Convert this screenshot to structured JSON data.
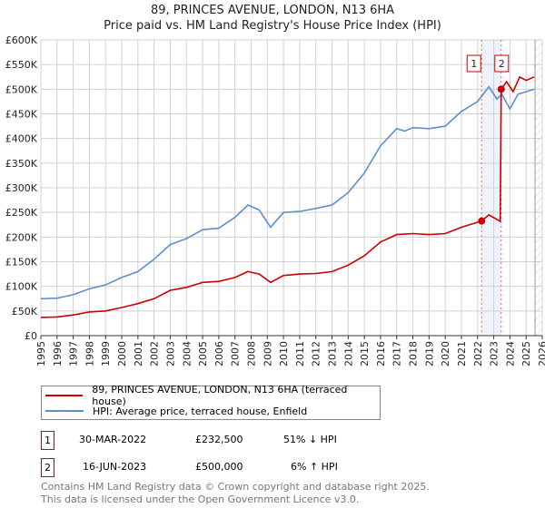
{
  "title": "89, PRINCES AVENUE, LONDON, N13 6HA",
  "subtitle": "Price paid vs. HM Land Registry's House Price Index (HPI)",
  "chart_data": {
    "type": "line",
    "title": "89, PRINCES AVENUE, LONDON, N13 6HA — Price paid vs. HM Land Registry's House Price Index (HPI)",
    "xlim": [
      1995,
      2026
    ],
    "ylim": [
      0,
      600000
    ],
    "xticks": [
      "1995",
      "1996",
      "1997",
      "1998",
      "1999",
      "2000",
      "2001",
      "2002",
      "2003",
      "2004",
      "2005",
      "2006",
      "2007",
      "2008",
      "2009",
      "2010",
      "2011",
      "2012",
      "2013",
      "2014",
      "2015",
      "2016",
      "2017",
      "2018",
      "2019",
      "2020",
      "2021",
      "2022",
      "2023",
      "2024",
      "2025",
      "2026"
    ],
    "yticks": [
      "£0",
      "£50K",
      "£100K",
      "£150K",
      "£200K",
      "£250K",
      "£300K",
      "£350K",
      "£400K",
      "£450K",
      "£500K",
      "£550K",
      "£600K"
    ],
    "grid": true,
    "series": [
      {
        "name": "89, PRINCES AVENUE, LONDON, N13 6HA (terraced house)",
        "color": "#cc0000",
        "x": [
          1995,
          1996,
          1997,
          1998,
          1999,
          2000,
          2001,
          2002,
          2003,
          2004,
          2005,
          2006,
          2007,
          2007.8,
          2008.5,
          2009.2,
          2010,
          2011,
          2012,
          2013,
          2014,
          2015,
          2016,
          2017,
          2018,
          2019,
          2020,
          2021,
          2022.25,
          2022.7,
          2023.4,
          2023.46,
          2023.8,
          2024.2,
          2024.6,
          2025,
          2025.5
        ],
        "y": [
          37000,
          38000,
          42000,
          48000,
          50000,
          57000,
          65000,
          75000,
          92000,
          98000,
          108000,
          110000,
          118000,
          130000,
          125000,
          108000,
          122000,
          125000,
          126000,
          130000,
          143000,
          162000,
          190000,
          205000,
          207000,
          205000,
          207000,
          220000,
          232500,
          245000,
          232000,
          500000,
          515000,
          495000,
          525000,
          518000,
          525000
        ]
      },
      {
        "name": "HPI: Average price, terraced house, Enfield",
        "color": "#5b8fd0",
        "x": [
          1995,
          1996,
          1997,
          1998,
          1999,
          2000,
          2001,
          2002,
          2003,
          2004,
          2005,
          2006,
          2007,
          2007.8,
          2008.5,
          2009.2,
          2010,
          2011,
          2012,
          2013,
          2014,
          2015,
          2016,
          2017,
          2017.5,
          2018,
          2019,
          2020,
          2021,
          2022,
          2022.7,
          2023.2,
          2023.5,
          2024,
          2024.5,
          2025,
          2025.5
        ],
        "y": [
          75000,
          76000,
          83000,
          95000,
          103000,
          118000,
          130000,
          155000,
          185000,
          197000,
          215000,
          218000,
          240000,
          265000,
          255000,
          220000,
          250000,
          252000,
          258000,
          265000,
          290000,
          330000,
          385000,
          420000,
          415000,
          422000,
          420000,
          425000,
          455000,
          475000,
          505000,
          480000,
          490000,
          460000,
          490000,
          495000,
          500000
        ]
      }
    ],
    "sales": [
      {
        "label": "1",
        "x": 2022.25,
        "y": 232500
      },
      {
        "label": "2",
        "x": 2023.46,
        "y": 500000
      }
    ],
    "legend": "bottom"
  },
  "legend": {
    "items": [
      "89, PRINCES AVENUE, LONDON, N13 6HA (terraced house)",
      "HPI: Average price, terraced house, Enfield"
    ]
  },
  "table": [
    {
      "num": "1",
      "date": "30-MAR-2022",
      "price": "£232,500",
      "hpi": "51% ↓ HPI"
    },
    {
      "num": "2",
      "date": "16-JUN-2023",
      "price": "£500,000",
      "hpi": "6% ↑ HPI"
    }
  ],
  "footer": [
    "Contains HM Land Registry data © Crown copyright and database right 2025.",
    "This data is licensed under the Open Government Licence v3.0."
  ]
}
